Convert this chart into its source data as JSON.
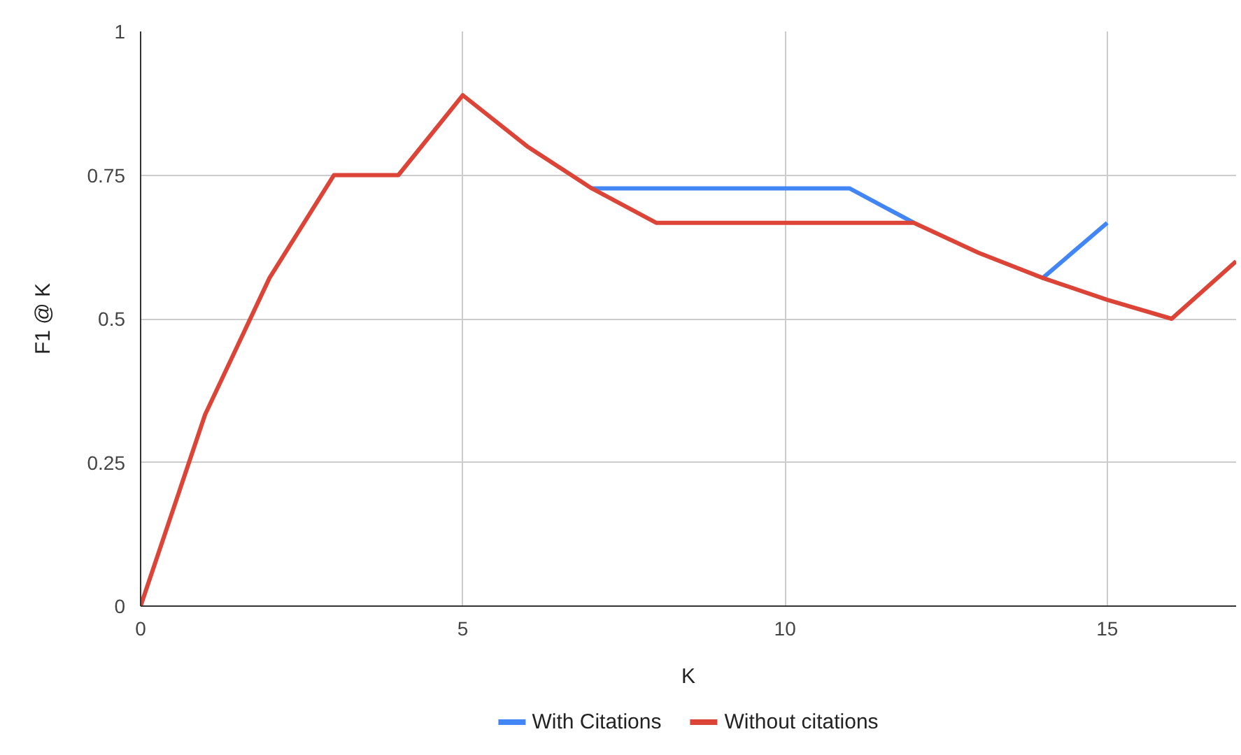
{
  "chart_data": {
    "type": "line",
    "xlabel": "K",
    "ylabel": "F1 @ K",
    "x": [
      0,
      1,
      2,
      3,
      4,
      5,
      6,
      7,
      8,
      9,
      10,
      11,
      12,
      13,
      14,
      15,
      16,
      17
    ],
    "series": [
      {
        "name": "With Citations",
        "color": "#4285f4",
        "values": [
          null,
          null,
          null,
          null,
          null,
          null,
          null,
          0.727,
          0.727,
          0.727,
          0.727,
          0.727,
          0.667,
          null,
          0.571,
          0.667,
          null,
          null
        ]
      },
      {
        "name": "Without citations",
        "color": "#db4437",
        "values": [
          0,
          0.333,
          0.571,
          0.75,
          0.75,
          0.889,
          0.8,
          0.727,
          0.667,
          0.667,
          0.667,
          0.667,
          0.667,
          0.615,
          0.571,
          0.533,
          0.5,
          0.6
        ]
      }
    ],
    "xlim": [
      0,
      17
    ],
    "ylim": [
      0,
      1
    ],
    "xticks": [
      0,
      5,
      10,
      15
    ],
    "yticks": [
      0,
      0.25,
      0.5,
      0.75,
      1
    ],
    "grid": true,
    "legend": "bottom",
    "marker": "none",
    "line_style": "solid"
  }
}
